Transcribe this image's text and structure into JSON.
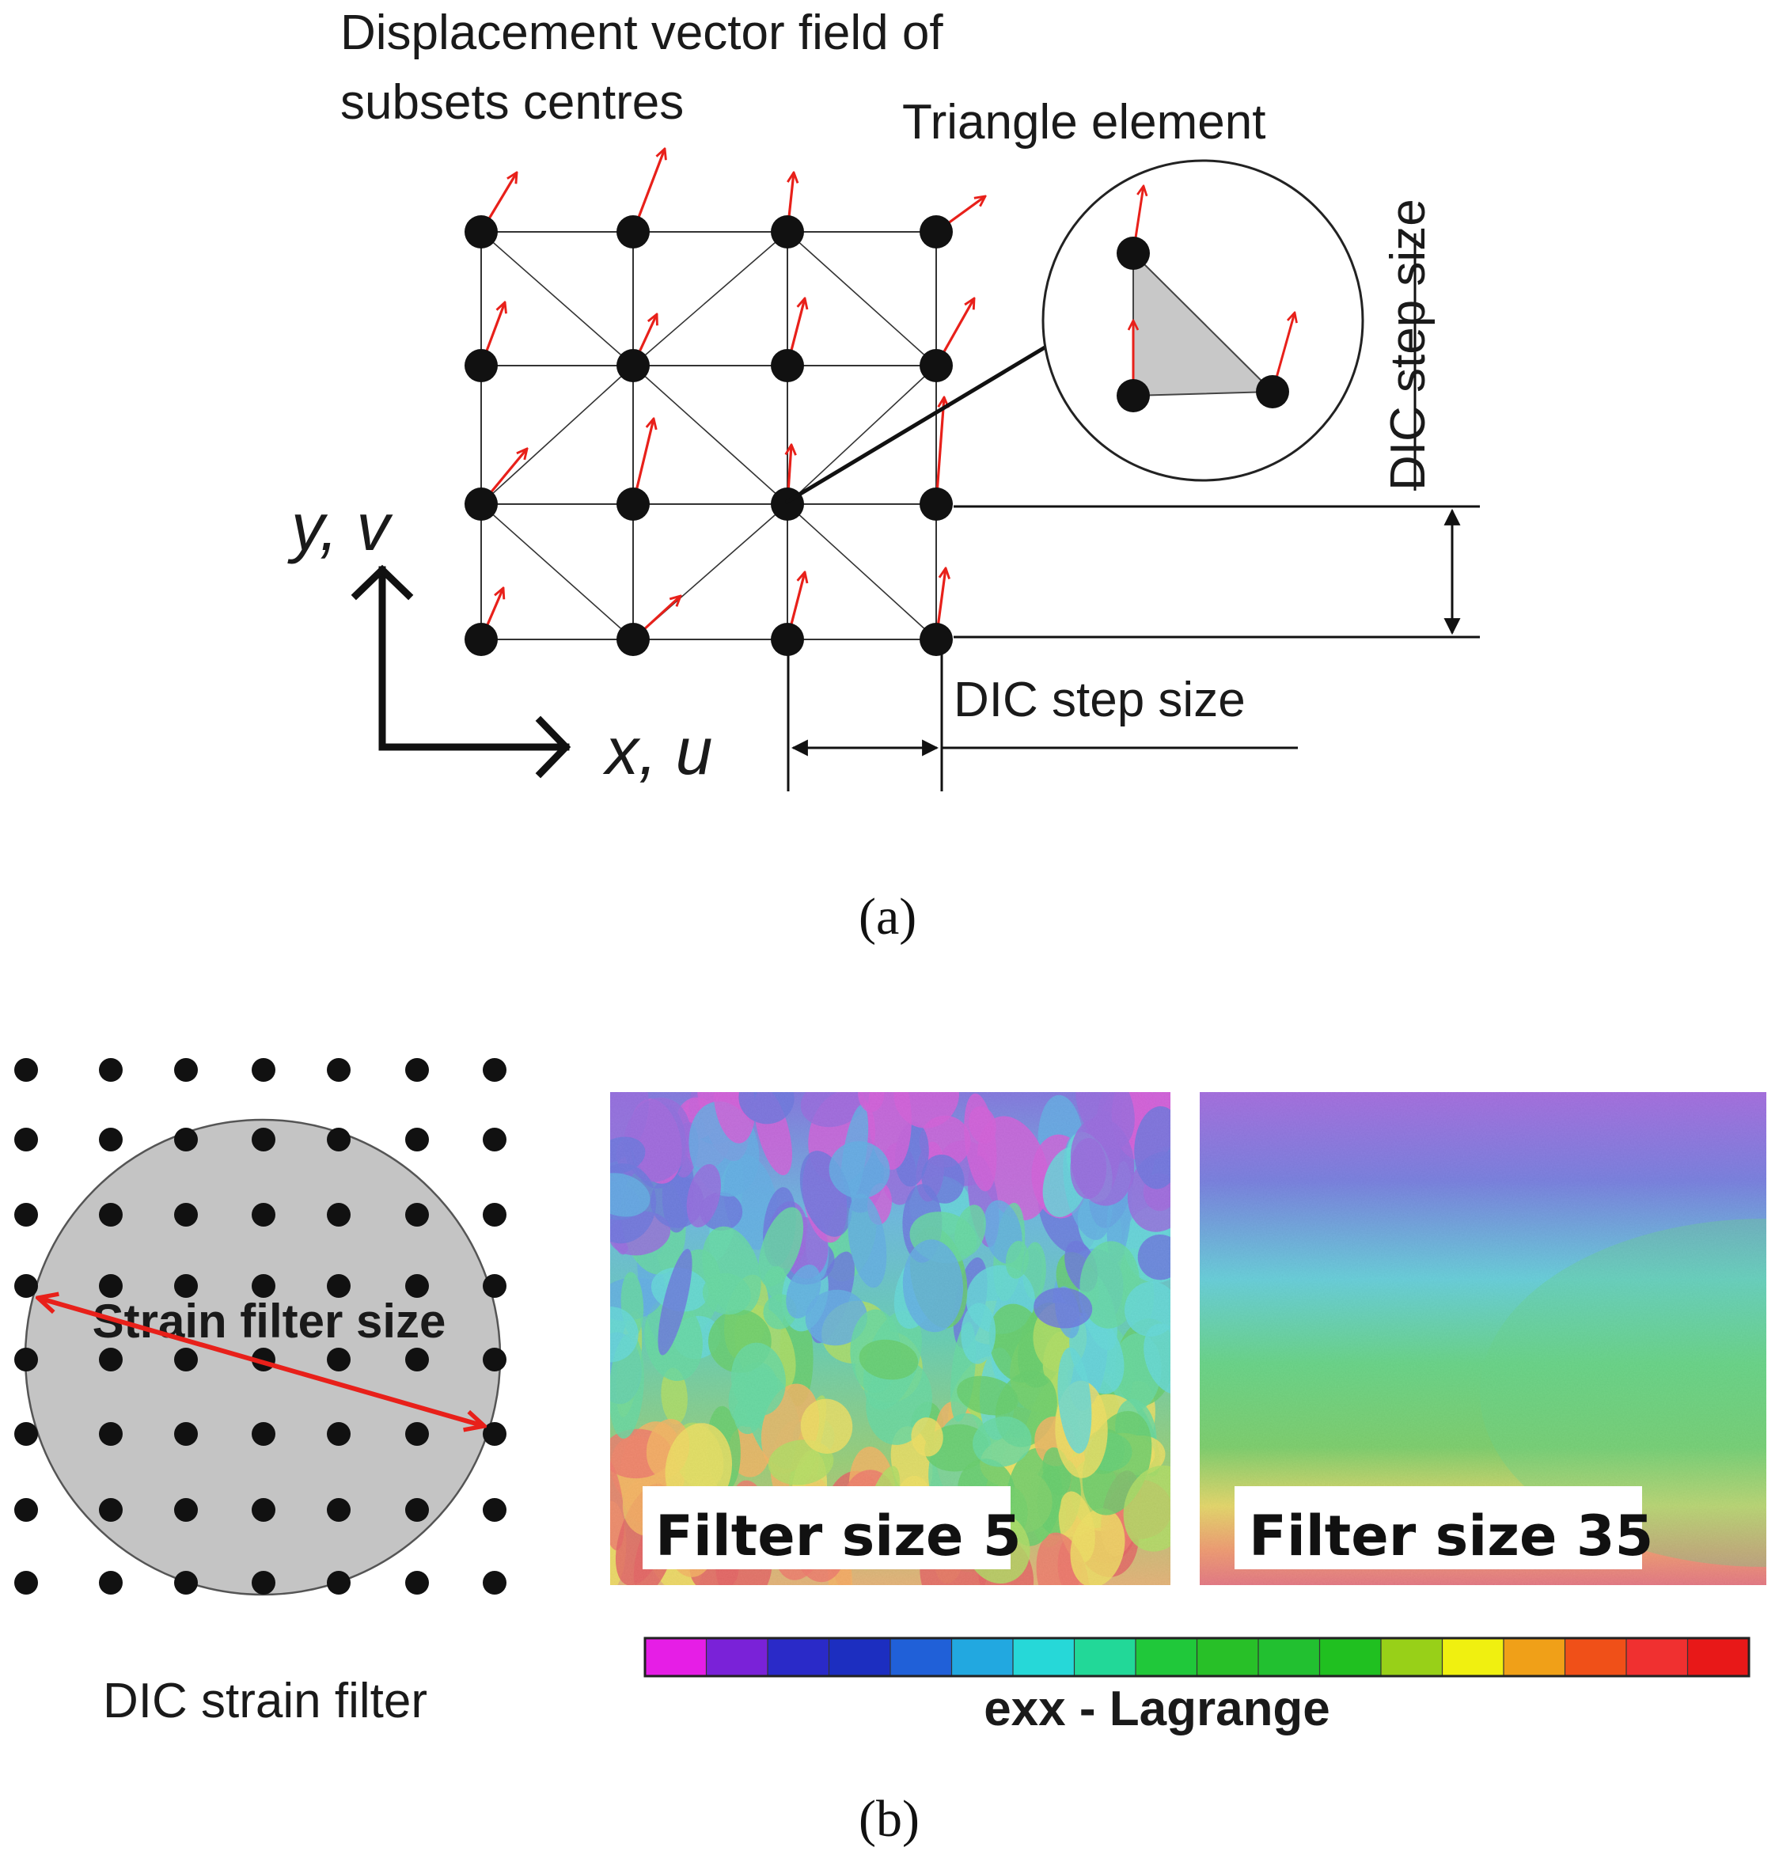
{
  "panel_a": {
    "caption": "(a)",
    "title_line1": "Displacement vector field of",
    "title_line2": "subsets centres",
    "triangle_label": "Triangle element",
    "step_size_vertical": "DIC step size",
    "step_size_horizontal": "DIC step size",
    "axis_y_label": "y, v",
    "axis_x_label": "x, u",
    "vector_color": "#e8201a"
  },
  "panel_b": {
    "caption": "(b)",
    "filter_label": "Strain filter size",
    "filter_caption": "DIC strain filter",
    "map1_label": "Filter size 5",
    "map2_label": "Filter size 35",
    "colorbar_label": "exx - Lagrange",
    "colorbar_colors": [
      "#e61ee6",
      "#7a22d8",
      "#2a2ac8",
      "#1c2ec0",
      "#2060d8",
      "#22a8e0",
      "#26d8d8",
      "#22d898",
      "#20c83a",
      "#28c028",
      "#22c030",
      "#20c020",
      "#98d018",
      "#f0f010",
      "#f0a018",
      "#f05018",
      "#f03030",
      "#e81818"
    ],
    "palette": [
      "#c018c8",
      "#6a2ad0",
      "#2a3ad0",
      "#1c8ad8",
      "#20c8c8",
      "#22c878",
      "#22b82a",
      "#8ccf1e",
      "#e8d21c",
      "#f0921c",
      "#e83e2a",
      "#d81e1e"
    ]
  }
}
